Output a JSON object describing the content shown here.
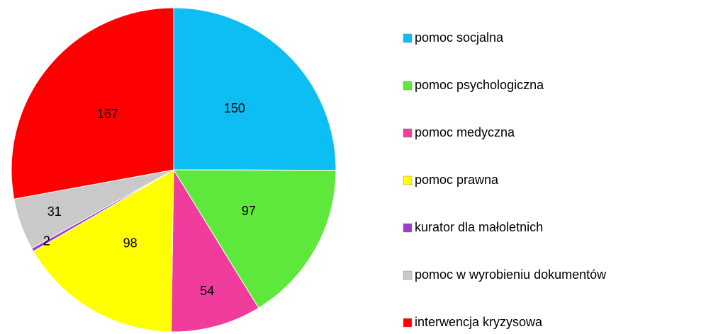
{
  "chart_data": {
    "type": "pie",
    "categories": [
      "pomoc socjalna",
      "pomoc psychologiczna",
      "pomoc medyczna",
      "pomoc prawna",
      "kurator dla małoletnich",
      "pomoc w wyrobieniu dokumentów",
      "interwencja kryzysowa"
    ],
    "values": [
      150,
      97,
      54,
      98,
      2,
      31,
      167
    ],
    "colors": [
      "#0dbef5",
      "#5fe83c",
      "#f03c9c",
      "#ffff00",
      "#9a3ccc",
      "#c9c9c9",
      "#ff0000"
    ]
  }
}
